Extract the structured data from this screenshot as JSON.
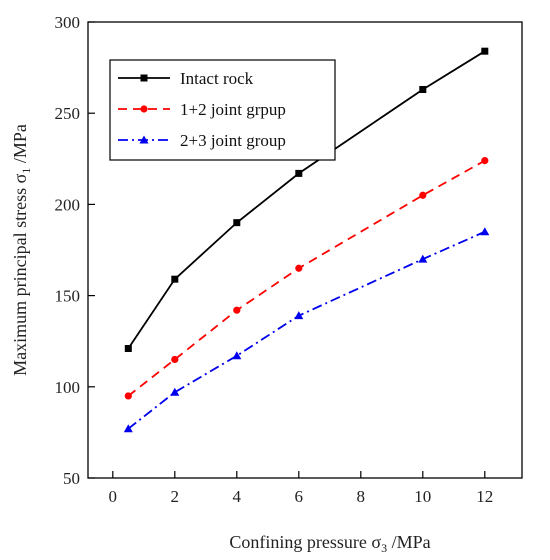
{
  "chart_data": {
    "type": "line",
    "xlabel_main": "Confining pressure σ",
    "xlabel_sub": "3",
    "xlabel_unit": " /MPa",
    "ylabel_main": "Maximum principal stress σ",
    "ylabel_sub": "1",
    "ylabel_unit": " /MPa",
    "xlim": [
      -0.8,
      13.2
    ],
    "ylim": [
      50,
      300
    ],
    "xticks": [
      0,
      2,
      4,
      6,
      8,
      10,
      12
    ],
    "yticks": [
      50,
      100,
      150,
      200,
      250,
      300
    ],
    "legend_position": "top-left",
    "grid": false,
    "series": [
      {
        "name": "Intact rock",
        "color": "#000000",
        "dash": "solid",
        "marker": "square",
        "x": [
          0.5,
          2,
          4,
          6,
          10,
          12
        ],
        "y": [
          121,
          159,
          190,
          217,
          263,
          284
        ]
      },
      {
        "name": "1+2 joint grpup",
        "color": "#ff0000",
        "dash": "dash",
        "marker": "circle",
        "x": [
          0.5,
          2,
          4,
          6,
          10,
          12
        ],
        "y": [
          95,
          115,
          142,
          165,
          205,
          224
        ]
      },
      {
        "name": "2+3 joint group",
        "color": "#0000ee",
        "dash": "dashdot",
        "marker": "triangle",
        "x": [
          0.5,
          2,
          4,
          6,
          10,
          12
        ],
        "y": [
          77,
          97,
          117,
          139,
          170,
          185
        ]
      }
    ]
  }
}
